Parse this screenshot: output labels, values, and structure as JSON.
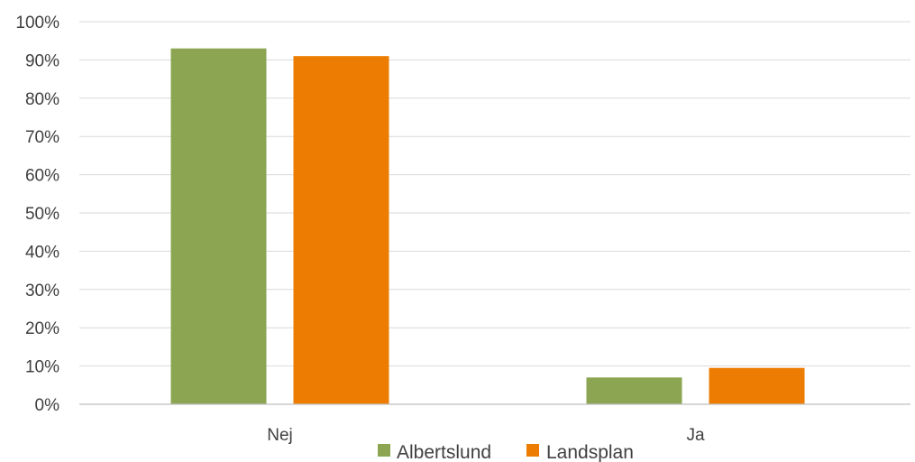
{
  "chart_data": {
    "type": "bar",
    "categories": [
      "Nej",
      "Ja"
    ],
    "series": [
      {
        "name": "Albertslund",
        "values": [
          93,
          7
        ],
        "color": "#8BA552"
      },
      {
        "name": "Landsplan",
        "values": [
          91,
          9.5
        ],
        "color": "#ED7D02"
      }
    ],
    "ylim": [
      0,
      100
    ],
    "yticks": [
      0,
      10,
      20,
      30,
      40,
      50,
      60,
      70,
      80,
      90,
      100
    ],
    "ytick_labels": [
      "0%",
      "10%",
      "20%",
      "30%",
      "40%",
      "50%",
      "60%",
      "70%",
      "80%",
      "90%",
      "100%"
    ],
    "title": "",
    "xlabel": "",
    "ylabel": "",
    "grid": true,
    "legend_position": "bottom"
  }
}
